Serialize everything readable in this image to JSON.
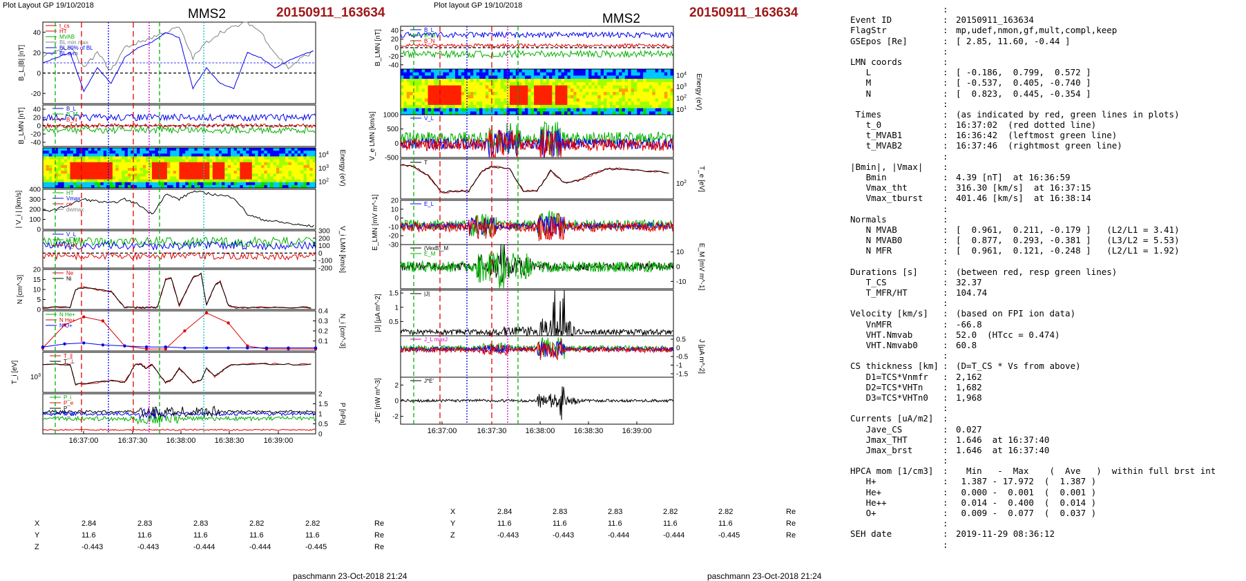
{
  "left_header": {
    "plot_label": "Plot Layout GP 19/10/2018",
    "spacecraft": "MMS2",
    "event_id": "20150911_163634"
  },
  "mid_header": {
    "plot_label": "Plot layout GP 19/10/2018",
    "spacecraft": "MMS2",
    "event_id": "20150911_163634"
  },
  "footer": {
    "left": "paschmann 23-Oct-2018 21:24",
    "mid": "paschmann 23-Oct-2018 21:24"
  },
  "time_ticks": [
    "16:37:00",
    "16:37:30",
    "16:38:00",
    "16:38:30",
    "16:39:00"
  ],
  "position_table": {
    "rows": [
      {
        "label": "X",
        "values": [
          "2.84",
          "2.83",
          "2.83",
          "2.82",
          "2.82"
        ],
        "unit": "Re"
      },
      {
        "label": "Y",
        "values": [
          "11.6",
          "11.6",
          "11.6",
          "11.6",
          "11.6"
        ],
        "unit": "Re"
      },
      {
        "label": "Z",
        "values": [
          "-0.443",
          "-0.443",
          "-0.444",
          "-0.444",
          "-0.445"
        ],
        "unit": "Re"
      }
    ]
  },
  "colors": {
    "black": "#000000",
    "red": "#e00000",
    "green": "#00b000",
    "blue": "#0000ee",
    "magenta": "#d000d0",
    "gray": "#808080",
    "cyan": "#00c0c0",
    "title_red": "#a01818"
  },
  "chart_data": [
    {
      "type": "line",
      "id": "left-bl",
      "ylabel": "B_L,|B| [nT]",
      "ylim": [
        -30,
        50
      ],
      "yticks": [
        -20,
        0,
        20,
        40
      ],
      "legend": [
        "t_cs",
        "HT",
        "MVAB",
        "BL min max",
        "BL 50% of BL",
        "BL sym"
      ],
      "series": [
        {
          "name": "|B|",
          "color": "#808080",
          "x": [
            0,
            5,
            10,
            15,
            20,
            25,
            30,
            35,
            40,
            45,
            50,
            55,
            60,
            65,
            70,
            75,
            80,
            85,
            90,
            95,
            100
          ],
          "y": [
            15,
            22,
            25,
            5,
            20,
            2,
            25,
            30,
            35,
            40,
            45,
            15,
            30,
            40,
            45,
            50,
            40,
            20,
            5,
            15,
            22
          ]
        },
        {
          "name": "B_L",
          "color": "#0000ee",
          "x": [
            0,
            5,
            10,
            15,
            20,
            25,
            30,
            35,
            40,
            45,
            50,
            55,
            60,
            65,
            70,
            75,
            80,
            85,
            90,
            95,
            100
          ],
          "y": [
            10,
            15,
            20,
            -18,
            5,
            -10,
            15,
            25,
            30,
            40,
            35,
            -15,
            5,
            -10,
            -15,
            20,
            15,
            5,
            12,
            18,
            22
          ]
        }
      ]
    },
    {
      "type": "line",
      "id": "left-blmn",
      "ylabel": "B_LMN [nT]",
      "ylim": [
        -50,
        50
      ],
      "yticks": [
        -40,
        -20,
        0,
        20,
        40
      ],
      "legend": [
        "B_L",
        "B_M",
        "B_N"
      ]
    },
    {
      "type": "heatmap",
      "id": "left-ion-spec",
      "ylabel": "Energy (eV)",
      "yticks": [
        "10^4",
        "10^3",
        "10^2"
      ]
    },
    {
      "type": "line",
      "id": "left-vi",
      "ylabel": "| V_i | [km/s]",
      "ylim": [
        0,
        400
      ],
      "yticks": [
        0,
        100,
        200,
        300,
        400
      ],
      "legend": [
        "HT",
        "Vmax",
        "cs",
        "dwmax"
      ],
      "series": [
        {
          "name": "|V_i|",
          "color": "#000000",
          "x": [
            0,
            5,
            10,
            15,
            20,
            25,
            30,
            35,
            40,
            45,
            50,
            55,
            60,
            65,
            70,
            75,
            80,
            85,
            90,
            95,
            100
          ],
          "y": [
            180,
            200,
            250,
            300,
            280,
            260,
            300,
            250,
            150,
            350,
            300,
            380,
            360,
            340,
            320,
            150,
            100,
            80,
            60,
            40,
            30
          ]
        }
      ]
    },
    {
      "type": "line",
      "id": "left-vilmn",
      "ylabel": "V_i LMN [km/s]",
      "ylim": [
        -200,
        300
      ],
      "yticks": [
        -200,
        -100,
        0,
        100,
        200,
        300
      ],
      "legend": [
        "V_L",
        "V_M",
        "V_N"
      ]
    },
    {
      "type": "line",
      "id": "left-n",
      "ylabel": "N [cm^-3]",
      "ylim": [
        0,
        20
      ],
      "yticks": [
        0,
        5,
        10,
        15,
        20
      ],
      "legend": [
        "Ne",
        "Ni"
      ],
      "series": [
        {
          "name": "Ni",
          "color": "#000000",
          "x": [
            0,
            10,
            12,
            15,
            20,
            25,
            30,
            34,
            36,
            40,
            42,
            45,
            47,
            50,
            55,
            58,
            60,
            63,
            65,
            68,
            70,
            75,
            80,
            90,
            100
          ],
          "y": [
            1,
            1,
            10,
            11,
            10,
            9,
            1,
            1,
            1,
            1,
            1,
            15,
            16,
            2,
            16,
            18,
            2,
            12,
            14,
            2,
            1,
            1,
            1,
            1,
            1
          ]
        }
      ]
    },
    {
      "type": "line",
      "id": "left-nhpca",
      "ylabel": "N_i [cm^-3]",
      "ylim": [
        0,
        0.4
      ],
      "yticks": [
        0.1,
        0.2,
        0.3,
        0.4
      ],
      "legend": [
        "N He+",
        "N He+",
        "N O+"
      ],
      "series": [
        {
          "name": "N He+",
          "color": "#e00000",
          "x": [
            0,
            8,
            15,
            22,
            30,
            38,
            45,
            52,
            60,
            68,
            75,
            82,
            90,
            100
          ],
          "y": [
            0.03,
            0.26,
            0.34,
            0.3,
            0.05,
            0.02,
            0.02,
            0.2,
            0.38,
            0.28,
            0.05,
            0.02,
            0.02,
            0.02
          ]
        },
        {
          "name": "N O+",
          "color": "#0000ee",
          "x": [
            0,
            8,
            15,
            22,
            30,
            38,
            45,
            52,
            60,
            68,
            75,
            82,
            90,
            100
          ],
          "y": [
            0.04,
            0.07,
            0.08,
            0.06,
            0.05,
            0.04,
            0.04,
            0.03,
            0.03,
            0.03,
            0.03,
            0.03,
            0.03,
            0.03
          ]
        }
      ]
    },
    {
      "type": "line",
      "id": "left-ti",
      "ylabel": "T_i [eV]",
      "yticks": [
        "10^3"
      ],
      "legend": [
        "T_∥",
        "T_⊥"
      ]
    },
    {
      "type": "line",
      "id": "left-p",
      "ylabel": "P [nPa]",
      "ylim": [
        0,
        2
      ],
      "yticks": [
        0.0,
        0.5,
        1.0,
        1.5,
        2.0
      ],
      "legend": [
        "P_i",
        "P_e",
        "P",
        "P_B"
      ]
    },
    {
      "type": "line",
      "id": "mid-blmn",
      "ylabel": "B_LMN [nT]",
      "ylim": [
        -50,
        50
      ],
      "yticks": [
        -40,
        -20,
        0,
        20,
        40
      ],
      "legend": [
        "B_L",
        "B_M",
        "B_N"
      ]
    },
    {
      "type": "heatmap",
      "id": "mid-e-spec",
      "ylabel": "Energy (eV)",
      "yticks": [
        "10^4",
        "10^3",
        "10^2",
        "10^1"
      ]
    },
    {
      "type": "line",
      "id": "mid-ve",
      "ylabel": "V_e LMN [km/s]",
      "ylim": [
        -500,
        1000
      ],
      "yticks": [
        -500,
        0,
        500,
        1000
      ],
      "legend": [
        "V_L"
      ]
    },
    {
      "type": "line",
      "id": "mid-te",
      "ylabel": "T_e [eV]",
      "yticks": [
        "10^2"
      ],
      "legend": [
        "T"
      ]
    },
    {
      "type": "line",
      "id": "mid-elmn",
      "ylabel": "E_LMN [mV m^-1]",
      "ylim": [
        -30,
        20
      ],
      "yticks": [
        -30,
        -20,
        -10,
        0,
        10,
        20
      ],
      "legend": [
        "E_L"
      ]
    },
    {
      "type": "line",
      "id": "mid-em",
      "ylabel": "E_M [mV m^-1]",
      "ylim": [
        -15,
        15
      ],
      "yticks": [
        -10,
        0,
        10
      ],
      "legend": [
        "(VexB)_M",
        "E_M"
      ]
    },
    {
      "type": "line",
      "id": "mid-j",
      "ylabel": "|J| [μA m^-2]",
      "ylim": [
        0,
        1.6
      ],
      "yticks": [
        0.5,
        1.0,
        1.5
      ],
      "legend": [
        "|J|"
      ]
    },
    {
      "type": "line",
      "id": "mid-jlmn",
      "ylabel": "J [μA m^-2]",
      "ylim": [
        -1.7,
        0.7
      ],
      "yticks": [
        -1.5,
        -1.0,
        -0.5,
        0.0,
        0.5
      ],
      "legend": [
        "J_L maxJ"
      ]
    },
    {
      "type": "line",
      "id": "mid-je",
      "ylabel": "J*E' [nW m^-3]",
      "ylim": [
        -3,
        3
      ],
      "yticks": [
        -2,
        0,
        2
      ],
      "legend": [
        "J*E'"
      ]
    }
  ],
  "summary": [
    {
      "key": "",
      "value": ""
    },
    {
      "key": "Event ID",
      "value": "20150911_163634"
    },
    {
      "key": "FlagStr",
      "value": "mp,udef,nmon,gf,mult,compl,keep"
    },
    {
      "key": "GSEpos [Re]",
      "value": "[ 2.85, 11.60, -0.44 ]"
    },
    {
      "key": "",
      "value": ""
    },
    {
      "key": "LMN coords",
      "value": ""
    },
    {
      "key": "   L",
      "value": "[ -0.186,  0.799,  0.572 ]"
    },
    {
      "key": "   M",
      "value": "[ -0.537,  0.405, -0.740 ]"
    },
    {
      "key": "   N",
      "value": "[  0.823,  0.445, -0.354 ]"
    },
    {
      "key": "",
      "value": ""
    },
    {
      "key": " Times",
      "value": "(as indicated by red, green lines in plots)"
    },
    {
      "key": "   t_0",
      "value": "16:37:02  (red dotted line)"
    },
    {
      "key": "   t_MVAB1",
      "value": "16:36:42  (leftmost green line)"
    },
    {
      "key": "   t_MVAB2",
      "value": "16:37:46  (rightmost green line)"
    },
    {
      "key": "",
      "value": ""
    },
    {
      "key": "|Bmin|, |Vmax|",
      "value": ""
    },
    {
      "key": "   Bmin",
      "value": "4.39 [nT]  at 16:36:59"
    },
    {
      "key": "   Vmax_tht",
      "value": "316.30 [km/s]  at 16:37:15"
    },
    {
      "key": "   Vmax_tburst",
      "value": "401.46 [km/s]  at 16:38:14"
    },
    {
      "key": "",
      "value": ""
    },
    {
      "key": "Normals",
      "value": ""
    },
    {
      "key": "   N MVAB",
      "value": "[  0.961,  0.211, -0.179 ]   (L2/L1 = 3.41)"
    },
    {
      "key": "   N MVAB0",
      "value": "[  0.877,  0.293, -0.381 ]   (L3/L2 = 5.53)"
    },
    {
      "key": "   N MFR",
      "value": "[  0.961,  0.121, -0.248 ]   (L2/L1 = 1.92)"
    },
    {
      "key": "",
      "value": ""
    },
    {
      "key": "Durations [s]",
      "value": "(between red, resp green lines)"
    },
    {
      "key": "   T_CS",
      "value": "32.37"
    },
    {
      "key": "   T_MFR/HT",
      "value": "104.74"
    },
    {
      "key": "",
      "value": ""
    },
    {
      "key": "Velocity [km/s]",
      "value": "(based on FPI ion data)"
    },
    {
      "key": "   VnMFR",
      "value": "-66.8"
    },
    {
      "key": "   VHT.Nmvab",
      "value": "52.0  (HTcc = 0.474)"
    },
    {
      "key": "   VHT.Nmvab0",
      "value": "60.8"
    },
    {
      "key": "",
      "value": ""
    },
    {
      "key": "CS thickness [km]",
      "value": "(D=T_CS * Vs from above)"
    },
    {
      "key": "   D1=TCS*Vnmfr",
      "value": "2,162"
    },
    {
      "key": "   D2=TCS*VHTn",
      "value": "1,682"
    },
    {
      "key": "   D3=TCS*VHTn0",
      "value": "1,968"
    },
    {
      "key": "",
      "value": ""
    },
    {
      "key": "Currents [uA/m2]",
      "value": ""
    },
    {
      "key": "   Jave_CS",
      "value": "0.027"
    },
    {
      "key": "   Jmax_THT",
      "value": "1.646  at 16:37:40"
    },
    {
      "key": "   Jmax_brst",
      "value": "1.646  at 16:37:40"
    },
    {
      "key": "",
      "value": ""
    },
    {
      "key": "HPCA mom [1/cm3]",
      "value": "  Min   -  Max    (  Ave   )  within full brst int"
    },
    {
      "key": "   H+",
      "value": " 1.387 - 17.972  (  1.387 )"
    },
    {
      "key": "   He+",
      "value": " 0.000 -  0.001  (  0.001 )"
    },
    {
      "key": "   He++",
      "value": " 0.014 -  0.400  (  0.014 )"
    },
    {
      "key": "   O+",
      "value": " 0.009 -  0.077  (  0.037 )"
    },
    {
      "key": "",
      "value": ""
    },
    {
      "key": "SEH date",
      "value": "2019-11-29 08:36:12"
    },
    {
      "key": "",
      "value": ""
    }
  ]
}
